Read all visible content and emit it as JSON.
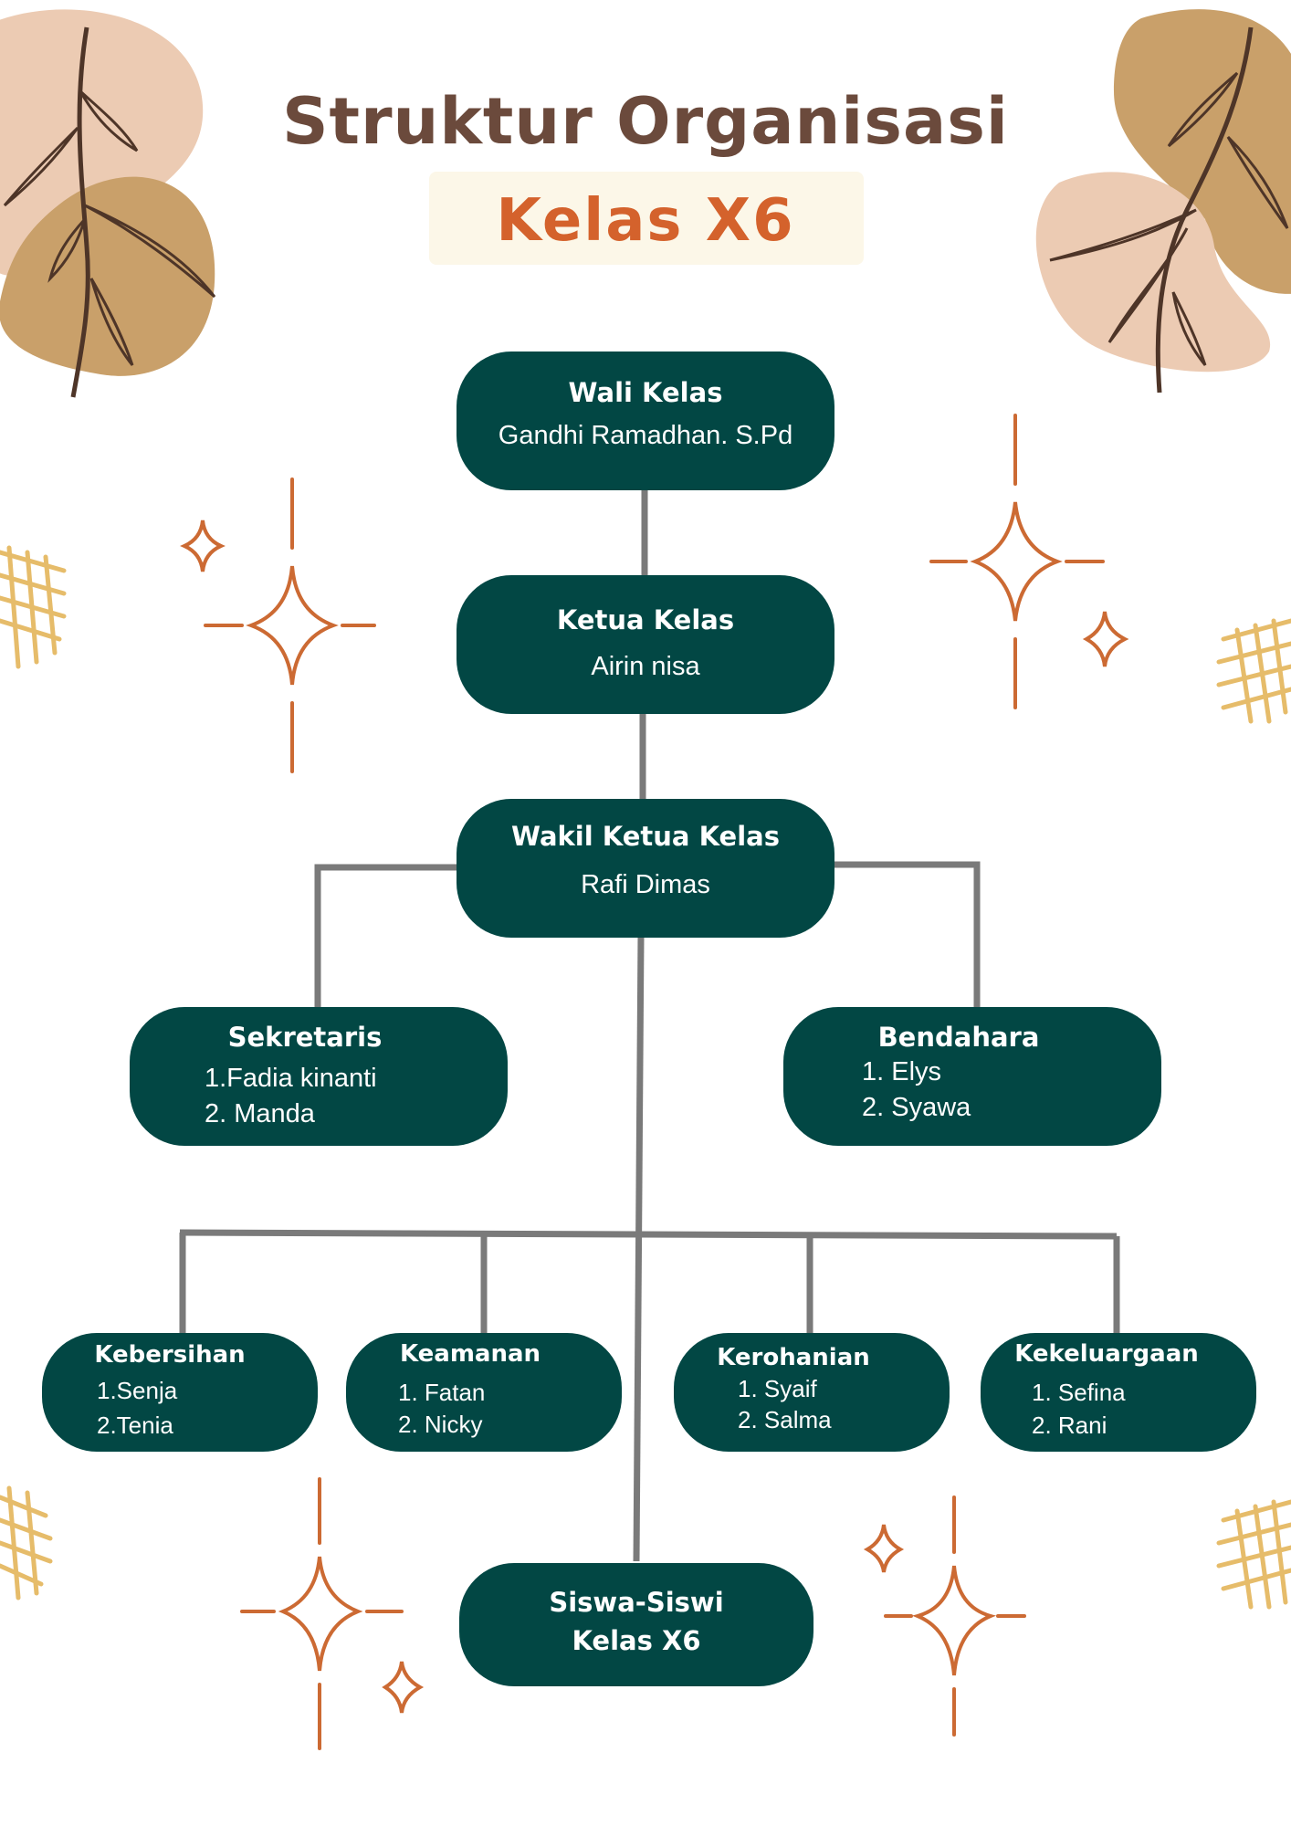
{
  "title": "Struktur Organisasi",
  "subtitle": "Kelas  X6",
  "colors": {
    "node_fill": "#024744",
    "title": "#6b4a3c",
    "subtitle": "#d4622c",
    "connector": "#7a7a7a",
    "sparkle": "#cc6a33",
    "leaf_blob_light": "#eccbb3",
    "leaf_blob_dark": "#c9a06a",
    "grid_pattern": "#e6bc6a"
  },
  "icons": [
    "leaf-branch-icon",
    "sparkle-icon",
    "lattice-icon"
  ],
  "nodes": {
    "wali": {
      "title": "Wali Kelas",
      "lines": [
        "Gandhi Ramadhan. S.Pd"
      ]
    },
    "ketua": {
      "title": "Ketua Kelas",
      "lines": [
        "Airin nisa"
      ]
    },
    "wakil": {
      "title": "Wakil Ketua Kelas",
      "lines": [
        "Rafi Dimas"
      ]
    },
    "sekretaris": {
      "title": "Sekretaris",
      "lines": [
        "1.Fadia kinanti",
        "2. Manda"
      ]
    },
    "bendahara": {
      "title": "Bendahara",
      "lines": [
        "1. Elys",
        "2. Syawa"
      ]
    },
    "kebersihan": {
      "title": "Kebersihan",
      "lines": [
        "1.Senja",
        "2.Tenia"
      ]
    },
    "keamanan": {
      "title": "Keamanan",
      "lines": [
        "1. Fatan",
        "2. Nicky"
      ]
    },
    "kerohanian": {
      "title": "Kerohanian",
      "lines": [
        "1. Syaif",
        "2. Salma"
      ]
    },
    "kekeluargaan": {
      "title": "Kekeluargaan",
      "lines": [
        "1. Sefina",
        "2. Rani"
      ]
    },
    "siswa": {
      "lines": [
        "Siswa-Siswi",
        "Kelas X6"
      ]
    }
  }
}
